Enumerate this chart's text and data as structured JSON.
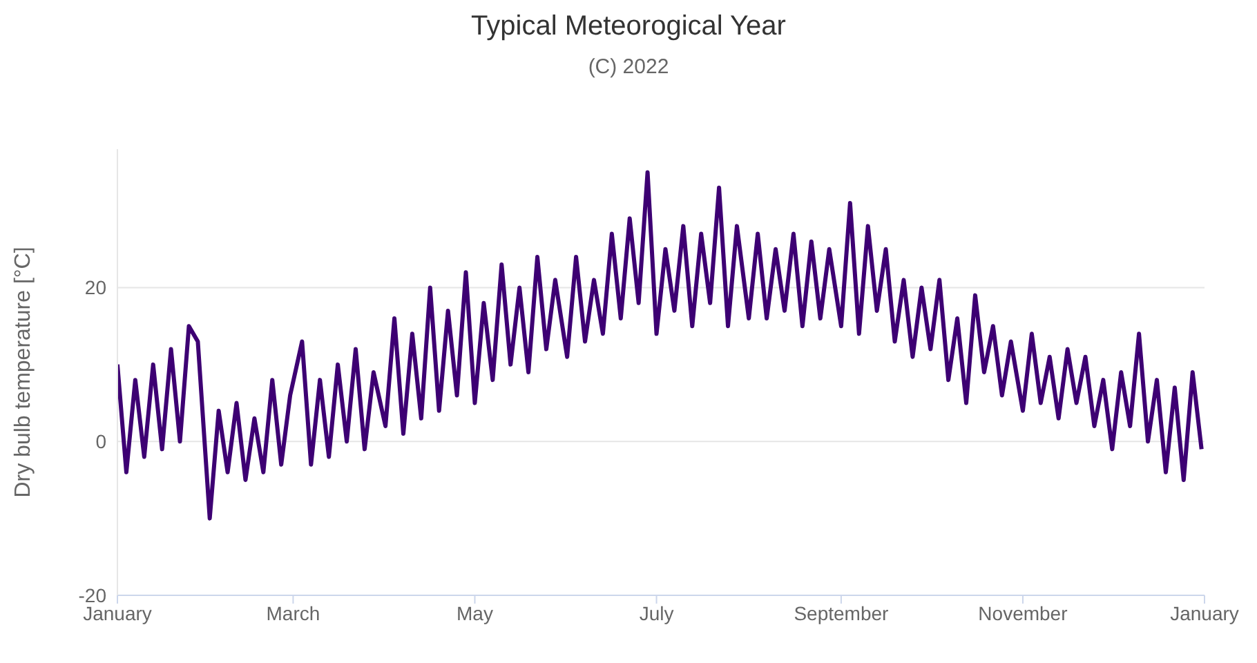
{
  "chart_data": {
    "type": "line",
    "title": "Typical Meteorogical Year",
    "subtitle": "(C) 2022",
    "ylabel": "Dry bulb temperature [°C]",
    "x": [
      "2022-01-01",
      "2022-01-04",
      "2022-01-07",
      "2022-01-10",
      "2022-01-13",
      "2022-01-16",
      "2022-01-19",
      "2022-01-22",
      "2022-01-25",
      "2022-01-28",
      "2022-02-01",
      "2022-02-04",
      "2022-02-07",
      "2022-02-10",
      "2022-02-13",
      "2022-02-16",
      "2022-02-19",
      "2022-02-22",
      "2022-02-25",
      "2022-02-28",
      "2022-03-04",
      "2022-03-07",
      "2022-03-10",
      "2022-03-13",
      "2022-03-16",
      "2022-03-19",
      "2022-03-22",
      "2022-03-25",
      "2022-03-28",
      "2022-04-01",
      "2022-04-04",
      "2022-04-07",
      "2022-04-10",
      "2022-04-13",
      "2022-04-16",
      "2022-04-19",
      "2022-04-22",
      "2022-04-25",
      "2022-04-28",
      "2022-05-01",
      "2022-05-04",
      "2022-05-07",
      "2022-05-10",
      "2022-05-13",
      "2022-05-16",
      "2022-05-19",
      "2022-05-22",
      "2022-05-25",
      "2022-05-28",
      "2022-06-01",
      "2022-06-04",
      "2022-06-07",
      "2022-06-10",
      "2022-06-13",
      "2022-06-16",
      "2022-06-19",
      "2022-06-22",
      "2022-06-25",
      "2022-06-28",
      "2022-07-01",
      "2022-07-04",
      "2022-07-07",
      "2022-07-10",
      "2022-07-13",
      "2022-07-16",
      "2022-07-19",
      "2022-07-22",
      "2022-07-25",
      "2022-07-28",
      "2022-08-01",
      "2022-08-04",
      "2022-08-07",
      "2022-08-10",
      "2022-08-13",
      "2022-08-16",
      "2022-08-19",
      "2022-08-22",
      "2022-08-25",
      "2022-08-28",
      "2022-09-01",
      "2022-09-04",
      "2022-09-07",
      "2022-09-10",
      "2022-09-13",
      "2022-09-16",
      "2022-09-19",
      "2022-09-22",
      "2022-09-25",
      "2022-09-28",
      "2022-10-01",
      "2022-10-04",
      "2022-10-07",
      "2022-10-10",
      "2022-10-13",
      "2022-10-16",
      "2022-10-19",
      "2022-10-22",
      "2022-10-25",
      "2022-10-28",
      "2022-11-01",
      "2022-11-04",
      "2022-11-07",
      "2022-11-10",
      "2022-11-13",
      "2022-11-16",
      "2022-11-19",
      "2022-11-22",
      "2022-11-25",
      "2022-11-28",
      "2022-12-01",
      "2022-12-04",
      "2022-12-07",
      "2022-12-10",
      "2022-12-13",
      "2022-12-16",
      "2022-12-19",
      "2022-12-22",
      "2022-12-25",
      "2022-12-28",
      "2022-12-31"
    ],
    "series": [
      {
        "color": "#3d0073",
        "values": [
          10,
          -4,
          8,
          -2,
          10,
          -1,
          12,
          0,
          15,
          13,
          -10,
          4,
          -4,
          5,
          -5,
          3,
          -4,
          8,
          -3,
          6,
          13,
          -3,
          8,
          -2,
          10,
          0,
          12,
          -1,
          9,
          2,
          16,
          1,
          14,
          3,
          20,
          4,
          17,
          6,
          22,
          5,
          18,
          8,
          23,
          10,
          20,
          9,
          24,
          12,
          21,
          11,
          24,
          13,
          21,
          14,
          27,
          16,
          29,
          18,
          35,
          14,
          25,
          17,
          28,
          15,
          27,
          18,
          33,
          15,
          28,
          16,
          27,
          16,
          25,
          17,
          27,
          15,
          26,
          16,
          25,
          15,
          31,
          14,
          28,
          17,
          25,
          13,
          21,
          11,
          20,
          12,
          21,
          8,
          16,
          5,
          19,
          9,
          15,
          6,
          13,
          4,
          14,
          5,
          11,
          3,
          12,
          5,
          11,
          2,
          8,
          -1,
          9,
          2,
          14,
          0,
          8,
          -4,
          7,
          -5,
          9,
          -1
        ]
      }
    ],
    "xlim": [
      "2022-01-01",
      "2023-01-01"
    ],
    "xticks": [
      {
        "value": "2022-01-01",
        "label": "January"
      },
      {
        "value": "2022-03-01",
        "label": "March"
      },
      {
        "value": "2022-05-01",
        "label": "May"
      },
      {
        "value": "2022-07-01",
        "label": "July"
      },
      {
        "value": "2022-09-01",
        "label": "September"
      },
      {
        "value": "2022-11-01",
        "label": "November"
      },
      {
        "value": "2023-01-01",
        "label": "January"
      }
    ],
    "ylim": [
      -20,
      38
    ],
    "yticks": [
      -20,
      0,
      20
    ],
    "grid": "y",
    "legend": false,
    "marker": "none",
    "line_style": "solid"
  }
}
